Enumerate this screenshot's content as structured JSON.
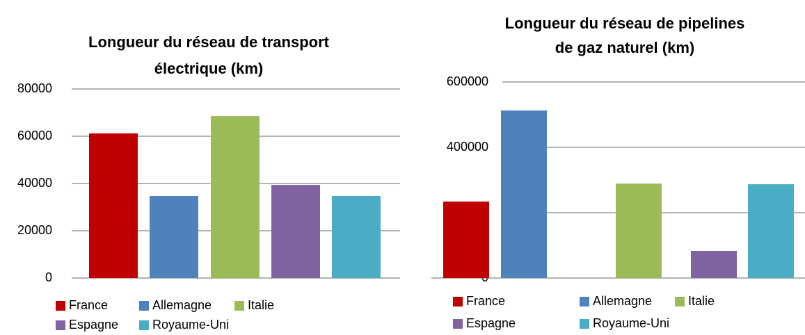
{
  "chart_data": [
    {
      "type": "bar",
      "title": [
        "Longueur du réseau de transport",
        "électrique  (km)"
      ],
      "categories": [
        null
      ],
      "series": [
        {
          "name": "France",
          "color": "#c00000",
          "values": [
            61200
          ]
        },
        {
          "name": "Allemagne",
          "color": "#4f81bd",
          "values": [
            34700
          ]
        },
        {
          "name": "Italie",
          "color": "#9bbb59",
          "values": [
            68500
          ]
        },
        {
          "name": "Espagne",
          "color": "#8064a2",
          "values": [
            39400
          ]
        },
        {
          "name": "Royaume-Uni",
          "color": "#4bacc6",
          "values": [
            34700
          ]
        }
      ],
      "ylim": [
        0,
        80000
      ],
      "yticks": [
        0,
        20000,
        40000,
        60000,
        80000
      ],
      "grid": true,
      "legend": "bottom"
    },
    {
      "type": "bar",
      "title": [
        "Longueur du réseau de pipelines",
        "de gaz naturel (km)"
      ],
      "categories": [
        null
      ],
      "series": [
        {
          "name": "France",
          "color": "#c00000",
          "values": [
            234000
          ]
        },
        {
          "name": "Allemagne",
          "color": "#4f81bd",
          "values": [
            513000
          ]
        },
        {
          "name": "Italie",
          "color": "#9bbb59",
          "values": [
            289000
          ]
        },
        {
          "name": "Espagne",
          "color": "#8064a2",
          "values": [
            83000
          ]
        },
        {
          "name": "Royaume-Uni",
          "color": "#4bacc6",
          "values": [
            287000
          ]
        }
      ],
      "ylim": [
        0,
        600000
      ],
      "yticks": [
        0,
        200000,
        400000,
        600000
      ],
      "grid": true,
      "legend": "bottom"
    }
  ]
}
